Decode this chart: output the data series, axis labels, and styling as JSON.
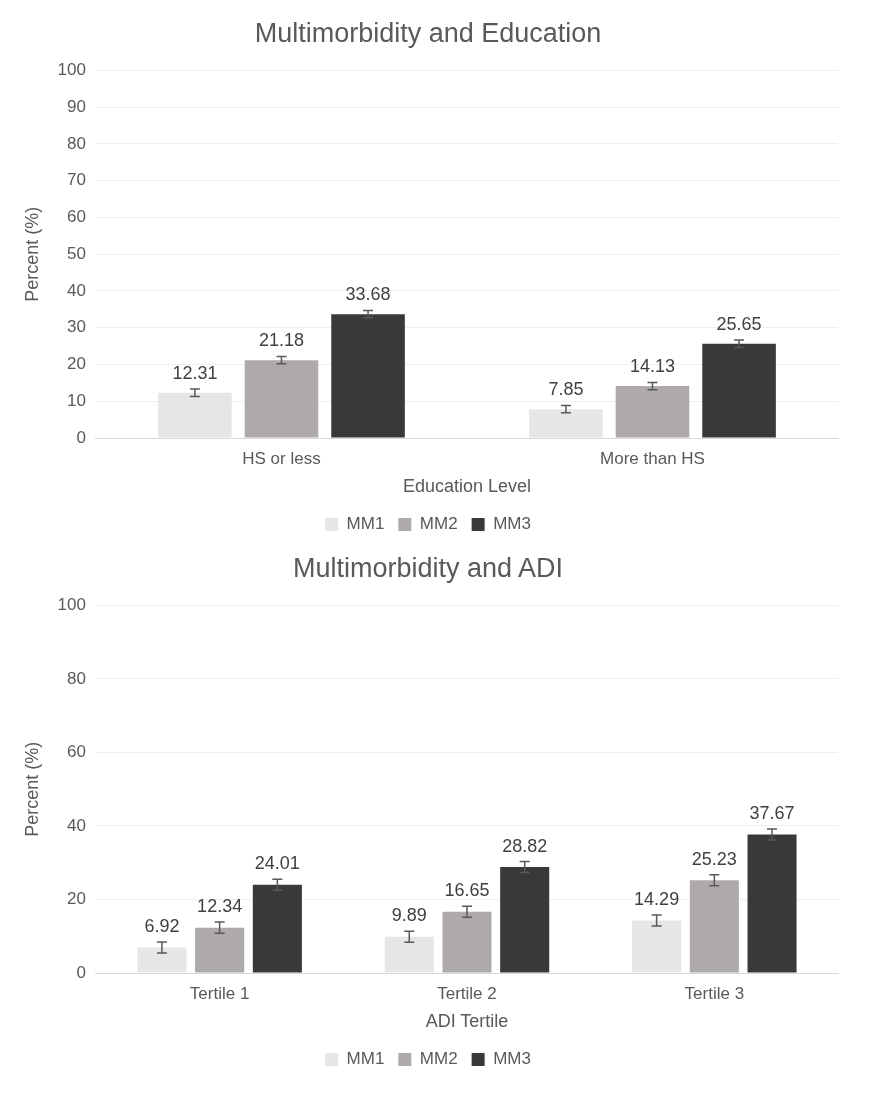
{
  "chart_data": [
    {
      "type": "bar",
      "title": "Multimorbidity and Education",
      "xlabel": "Education Level",
      "ylabel": "Percent (%)",
      "categories": [
        "HS or less",
        "More than HS"
      ],
      "series": [
        {
          "name": "MM1",
          "color": "#e7e6e6",
          "values": [
            12.31,
            7.85
          ],
          "errors": [
            1,
            1
          ]
        },
        {
          "name": "MM2",
          "color": "#aeaaaa",
          "values": [
            21.18,
            14.13
          ],
          "errors": [
            1,
            1
          ]
        },
        {
          "name": "MM3",
          "color": "#3b3838",
          "values": [
            33.68,
            25.65
          ],
          "errors": [
            1,
            1
          ]
        }
      ],
      "ylim": [
        0,
        100
      ],
      "yticks": [
        0,
        10,
        20,
        30,
        40,
        50,
        60,
        70,
        80,
        90,
        100
      ],
      "grid": "y",
      "legend": "bottom",
      "data_labels": true
    },
    {
      "type": "bar",
      "title": "Multimorbidity and ADI",
      "xlabel": "ADI Tertile",
      "ylabel": "Percent (%)",
      "categories": [
        "Tertile 1",
        "Tertile 2",
        "Tertile 3"
      ],
      "series": [
        {
          "name": "MM1",
          "color": "#e7e6e6",
          "values": [
            6.92,
            9.89,
            14.29
          ],
          "errors": [
            1.5,
            1.5,
            1.5
          ]
        },
        {
          "name": "MM2",
          "color": "#aeaaaa",
          "values": [
            12.34,
            16.65,
            25.23
          ],
          "errors": [
            1.5,
            1.5,
            1.5
          ]
        },
        {
          "name": "MM3",
          "color": "#3b3838",
          "values": [
            24.01,
            28.82,
            37.67
          ],
          "errors": [
            1.5,
            1.5,
            1.5
          ]
        }
      ],
      "ylim": [
        0,
        100
      ],
      "yticks": [
        0,
        20,
        40,
        60,
        80,
        100
      ],
      "grid": "y",
      "legend": "bottom",
      "data_labels": true
    }
  ]
}
